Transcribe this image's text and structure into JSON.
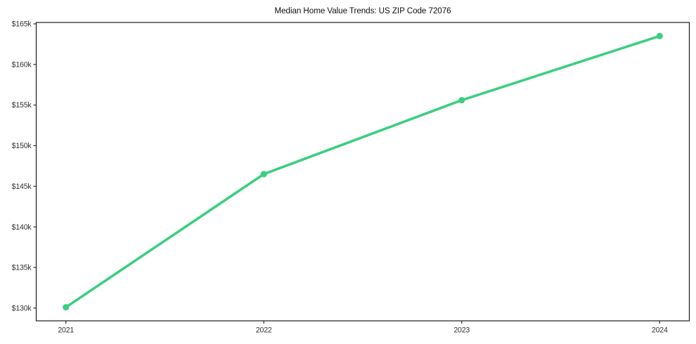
{
  "chart_data": {
    "type": "line",
    "title": "Median Home Value Trends: US ZIP Code 72076",
    "xlabel": "",
    "ylabel": "",
    "x": [
      2021,
      2022,
      2023,
      2024
    ],
    "xtick_labels": [
      "2021",
      "2022",
      "2023",
      "2024"
    ],
    "series": [
      {
        "name": "Median Home Value",
        "values": [
          130100,
          146500,
          155600,
          163500
        ]
      }
    ],
    "yticks": [
      130000,
      135000,
      140000,
      145000,
      150000,
      155000,
      160000,
      165000
    ],
    "ytick_labels": [
      "$130k",
      "$135k",
      "$140k",
      "$145k",
      "$150k",
      "$155k",
      "$160k",
      "$165k"
    ],
    "xlim": [
      2020.85,
      2024.15
    ],
    "ylim": [
      128430,
      165170
    ],
    "grid": false,
    "legend_position": "none",
    "colors": {
      "line": "#3cce81",
      "marker": "#3cce81",
      "axis": "#1a1a1a",
      "tick_label": "#333333",
      "title": "#111111",
      "background": "#ffffff"
    }
  }
}
